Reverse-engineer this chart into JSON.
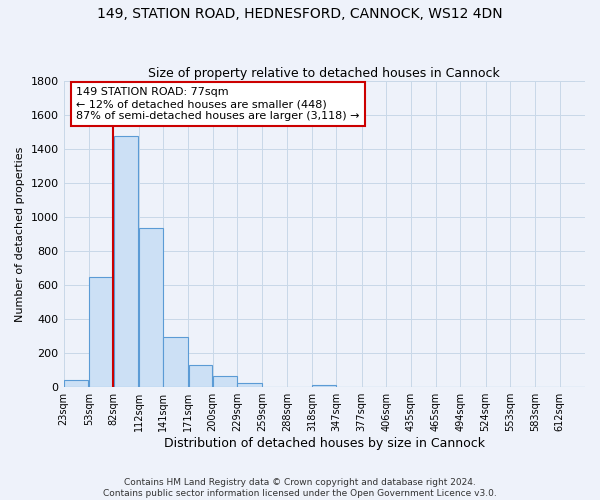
{
  "title": "149, STATION ROAD, HEDNESFORD, CANNOCK, WS12 4DN",
  "subtitle": "Size of property relative to detached houses in Cannock",
  "xlabel": "Distribution of detached houses by size in Cannock",
  "ylabel": "Number of detached properties",
  "bin_labels": [
    "23sqm",
    "53sqm",
    "82sqm",
    "112sqm",
    "141sqm",
    "171sqm",
    "200sqm",
    "229sqm",
    "259sqm",
    "288sqm",
    "318sqm",
    "347sqm",
    "377sqm",
    "406sqm",
    "435sqm",
    "465sqm",
    "494sqm",
    "524sqm",
    "553sqm",
    "583sqm",
    "612sqm"
  ],
  "bar_values": [
    40,
    650,
    1475,
    935,
    295,
    130,
    65,
    25,
    0,
    0,
    15,
    0,
    0,
    0,
    0,
    0,
    0,
    0,
    0,
    0,
    0
  ],
  "bar_color": "#cce0f5",
  "bar_edge_color": "#5b9bd5",
  "grid_color": "#c8d8e8",
  "background_color": "#eef2fa",
  "vline_color": "#cc0000",
  "annotation_text": "149 STATION ROAD: 77sqm\n← 12% of detached houses are smaller (448)\n87% of semi-detached houses are larger (3,118) →",
  "annotation_box_color": "#ffffff",
  "annotation_box_edge": "#cc0000",
  "footer": "Contains HM Land Registry data © Crown copyright and database right 2024.\nContains public sector information licensed under the Open Government Licence v3.0.",
  "ylim": [
    0,
    1800
  ],
  "yticks": [
    0,
    200,
    400,
    600,
    800,
    1000,
    1200,
    1400,
    1600,
    1800
  ]
}
